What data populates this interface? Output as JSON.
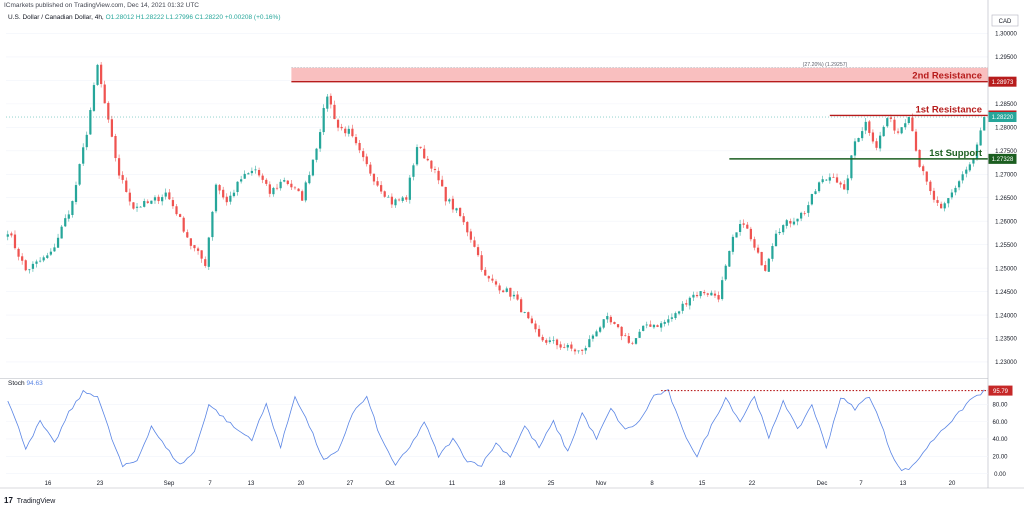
{
  "header": {
    "published": "ICmarkets published on TradingView.com, Dec 14, 2021 01:32 UTC",
    "symbol": "U.S. Dollar / Canadian Dollar, 4h,",
    "ohlc": "O1.28012  H1.28222  L1.27996  C1.28220  +0.00208 (+0.16%)"
  },
  "currency": "CAD",
  "footer": {
    "logo_mark": "17",
    "logo_text": "TradingView"
  },
  "chart_data": {
    "type": "candlestick",
    "price_axis": {
      "ticks": [
        "1.30000",
        "1.29500",
        "1.29000",
        "1.28500",
        "1.28000",
        "1.27500",
        "1.27000",
        "1.26500",
        "1.26000",
        "1.25500",
        "1.25000",
        "1.24500",
        "1.24000",
        "1.23500",
        "1.23000"
      ],
      "range": [
        1.2268,
        1.3033
      ]
    },
    "time_axis": {
      "ticks": [
        "16",
        "23",
        "Sep",
        "7",
        "13",
        "20",
        "27",
        "Oct",
        "11",
        "18",
        "25",
        "Nov",
        "8",
        "15",
        "22",
        "Dec",
        "7",
        "13",
        "20"
      ]
    },
    "anchors": [
      {
        "i": 0,
        "p": 1.258
      },
      {
        "i": 5,
        "p": 1.2495
      },
      {
        "i": 12,
        "p": 1.253
      },
      {
        "i": 18,
        "p": 1.264
      },
      {
        "i": 22,
        "p": 1.279
      },
      {
        "i": 25,
        "p": 1.293
      },
      {
        "i": 28,
        "p": 1.281
      },
      {
        "i": 31,
        "p": 1.27
      },
      {
        "i": 35,
        "p": 1.263
      },
      {
        "i": 40,
        "p": 1.264
      },
      {
        "i": 44,
        "p": 1.266
      },
      {
        "i": 47,
        "p": 1.262
      },
      {
        "i": 51,
        "p": 1.255
      },
      {
        "i": 55,
        "p": 1.251
      },
      {
        "i": 58,
        "p": 1.268
      },
      {
        "i": 61,
        "p": 1.264
      },
      {
        "i": 65,
        "p": 1.269
      },
      {
        "i": 69,
        "p": 1.271
      },
      {
        "i": 73,
        "p": 1.266
      },
      {
        "i": 77,
        "p": 1.269
      },
      {
        "i": 82,
        "p": 1.265
      },
      {
        "i": 86,
        "p": 1.276
      },
      {
        "i": 89,
        "p": 1.287
      },
      {
        "i": 92,
        "p": 1.28
      },
      {
        "i": 95,
        "p": 1.279
      },
      {
        "i": 99,
        "p": 1.273
      },
      {
        "i": 103,
        "p": 1.268
      },
      {
        "i": 107,
        "p": 1.264
      },
      {
        "i": 111,
        "p": 1.265
      },
      {
        "i": 114,
        "p": 1.276
      },
      {
        "i": 118,
        "p": 1.272
      },
      {
        "i": 122,
        "p": 1.265
      },
      {
        "i": 126,
        "p": 1.261
      },
      {
        "i": 130,
        "p": 1.255
      },
      {
        "i": 133,
        "p": 1.248
      },
      {
        "i": 137,
        "p": 1.246
      },
      {
        "i": 141,
        "p": 1.244
      },
      {
        "i": 144,
        "p": 1.24
      },
      {
        "i": 148,
        "p": 1.235
      },
      {
        "i": 152,
        "p": 1.234
      },
      {
        "i": 156,
        "p": 1.233
      },
      {
        "i": 160,
        "p": 1.232
      },
      {
        "i": 164,
        "p": 1.237
      },
      {
        "i": 167,
        "p": 1.239
      },
      {
        "i": 171,
        "p": 1.236
      },
      {
        "i": 174,
        "p": 1.234
      },
      {
        "i": 178,
        "p": 1.238
      },
      {
        "i": 182,
        "p": 1.238
      },
      {
        "i": 186,
        "p": 1.24
      },
      {
        "i": 190,
        "p": 1.244
      },
      {
        "i": 194,
        "p": 1.245
      },
      {
        "i": 198,
        "p": 1.244
      },
      {
        "i": 202,
        "p": 1.256
      },
      {
        "i": 205,
        "p": 1.26
      },
      {
        "i": 208,
        "p": 1.254
      },
      {
        "i": 211,
        "p": 1.25
      },
      {
        "i": 214,
        "p": 1.258
      },
      {
        "i": 218,
        "p": 1.26
      },
      {
        "i": 222,
        "p": 1.262
      },
      {
        "i": 226,
        "p": 1.268
      },
      {
        "i": 230,
        "p": 1.27
      },
      {
        "i": 233,
        "p": 1.266
      },
      {
        "i": 236,
        "p": 1.277
      },
      {
        "i": 239,
        "p": 1.281
      },
      {
        "i": 242,
        "p": 1.276
      },
      {
        "i": 245,
        "p": 1.282
      },
      {
        "i": 248,
        "p": 1.279
      },
      {
        "i": 251,
        "p": 1.283
      },
      {
        "i": 254,
        "p": 1.272
      },
      {
        "i": 257,
        "p": 1.266
      },
      {
        "i": 260,
        "p": 1.262
      },
      {
        "i": 263,
        "p": 1.266
      },
      {
        "i": 266,
        "p": 1.27
      },
      {
        "i": 269,
        "p": 1.273
      },
      {
        "i": 272,
        "p": 1.2822
      }
    ],
    "candle_count": 273,
    "last_price": 1.2822,
    "levels": [
      {
        "name": "2nd Resistance",
        "price": 1.28973,
        "price_label": "1.28973",
        "color": "#b71c1c",
        "zone_top": 1.2927,
        "zone_text": "(27.20%) (1.29257)",
        "from_index": 79
      },
      {
        "name": "1st Resistance",
        "price": 1.28253,
        "price_label": "1.28253",
        "color": "#b71c1c",
        "from_index": 229
      },
      {
        "name": "1st Support",
        "price": 1.27328,
        "price_label": "1.27328",
        "color": "#1b5e20",
        "from_index": 201
      }
    ],
    "last_price_label": "1.28220",
    "up_color": "#26a69a",
    "down_color": "#ef5350",
    "stoch": {
      "label": "Stoch",
      "value": "94.63",
      "last_label": "95.79",
      "ticks": [
        "80.00",
        "60.00",
        "40.00",
        "20.00",
        "0.00"
      ],
      "range": [
        -5,
        108
      ],
      "color": "#5b86e5",
      "line_value": 95.79,
      "line_from_index": 182,
      "anchors": [
        {
          "i": 0,
          "v": 85
        },
        {
          "i": 5,
          "v": 30
        },
        {
          "i": 9,
          "v": 60
        },
        {
          "i": 13,
          "v": 35
        },
        {
          "i": 17,
          "v": 70
        },
        {
          "i": 21,
          "v": 94
        },
        {
          "i": 25,
          "v": 90
        },
        {
          "i": 29,
          "v": 40
        },
        {
          "i": 32,
          "v": 8
        },
        {
          "i": 36,
          "v": 15
        },
        {
          "i": 40,
          "v": 55
        },
        {
          "i": 44,
          "v": 30
        },
        {
          "i": 48,
          "v": 10
        },
        {
          "i": 52,
          "v": 25
        },
        {
          "i": 56,
          "v": 80
        },
        {
          "i": 60,
          "v": 65
        },
        {
          "i": 64,
          "v": 50
        },
        {
          "i": 68,
          "v": 40
        },
        {
          "i": 72,
          "v": 80
        },
        {
          "i": 76,
          "v": 30
        },
        {
          "i": 80,
          "v": 90
        },
        {
          "i": 84,
          "v": 55
        },
        {
          "i": 88,
          "v": 15
        },
        {
          "i": 92,
          "v": 25
        },
        {
          "i": 96,
          "v": 70
        },
        {
          "i": 100,
          "v": 88
        },
        {
          "i": 104,
          "v": 40
        },
        {
          "i": 108,
          "v": 10
        },
        {
          "i": 112,
          "v": 30
        },
        {
          "i": 116,
          "v": 60
        },
        {
          "i": 120,
          "v": 20
        },
        {
          "i": 124,
          "v": 40
        },
        {
          "i": 128,
          "v": 15
        },
        {
          "i": 132,
          "v": 10
        },
        {
          "i": 136,
          "v": 35
        },
        {
          "i": 140,
          "v": 20
        },
        {
          "i": 144,
          "v": 55
        },
        {
          "i": 148,
          "v": 30
        },
        {
          "i": 152,
          "v": 60
        },
        {
          "i": 156,
          "v": 25
        },
        {
          "i": 160,
          "v": 70
        },
        {
          "i": 164,
          "v": 40
        },
        {
          "i": 168,
          "v": 75
        },
        {
          "i": 172,
          "v": 50
        },
        {
          "i": 176,
          "v": 60
        },
        {
          "i": 180,
          "v": 90
        },
        {
          "i": 184,
          "v": 95
        },
        {
          "i": 188,
          "v": 50
        },
        {
          "i": 192,
          "v": 20
        },
        {
          "i": 196,
          "v": 55
        },
        {
          "i": 200,
          "v": 88
        },
        {
          "i": 204,
          "v": 60
        },
        {
          "i": 208,
          "v": 90
        },
        {
          "i": 212,
          "v": 40
        },
        {
          "i": 216,
          "v": 85
        },
        {
          "i": 220,
          "v": 50
        },
        {
          "i": 224,
          "v": 80
        },
        {
          "i": 228,
          "v": 30
        },
        {
          "i": 232,
          "v": 88
        },
        {
          "i": 236,
          "v": 75
        },
        {
          "i": 240,
          "v": 90
        },
        {
          "i": 243,
          "v": 60
        },
        {
          "i": 246,
          "v": 25
        },
        {
          "i": 249,
          "v": 3
        },
        {
          "i": 252,
          "v": 8
        },
        {
          "i": 256,
          "v": 30
        },
        {
          "i": 260,
          "v": 50
        },
        {
          "i": 264,
          "v": 65
        },
        {
          "i": 268,
          "v": 85
        },
        {
          "i": 272,
          "v": 95
        }
      ]
    }
  }
}
